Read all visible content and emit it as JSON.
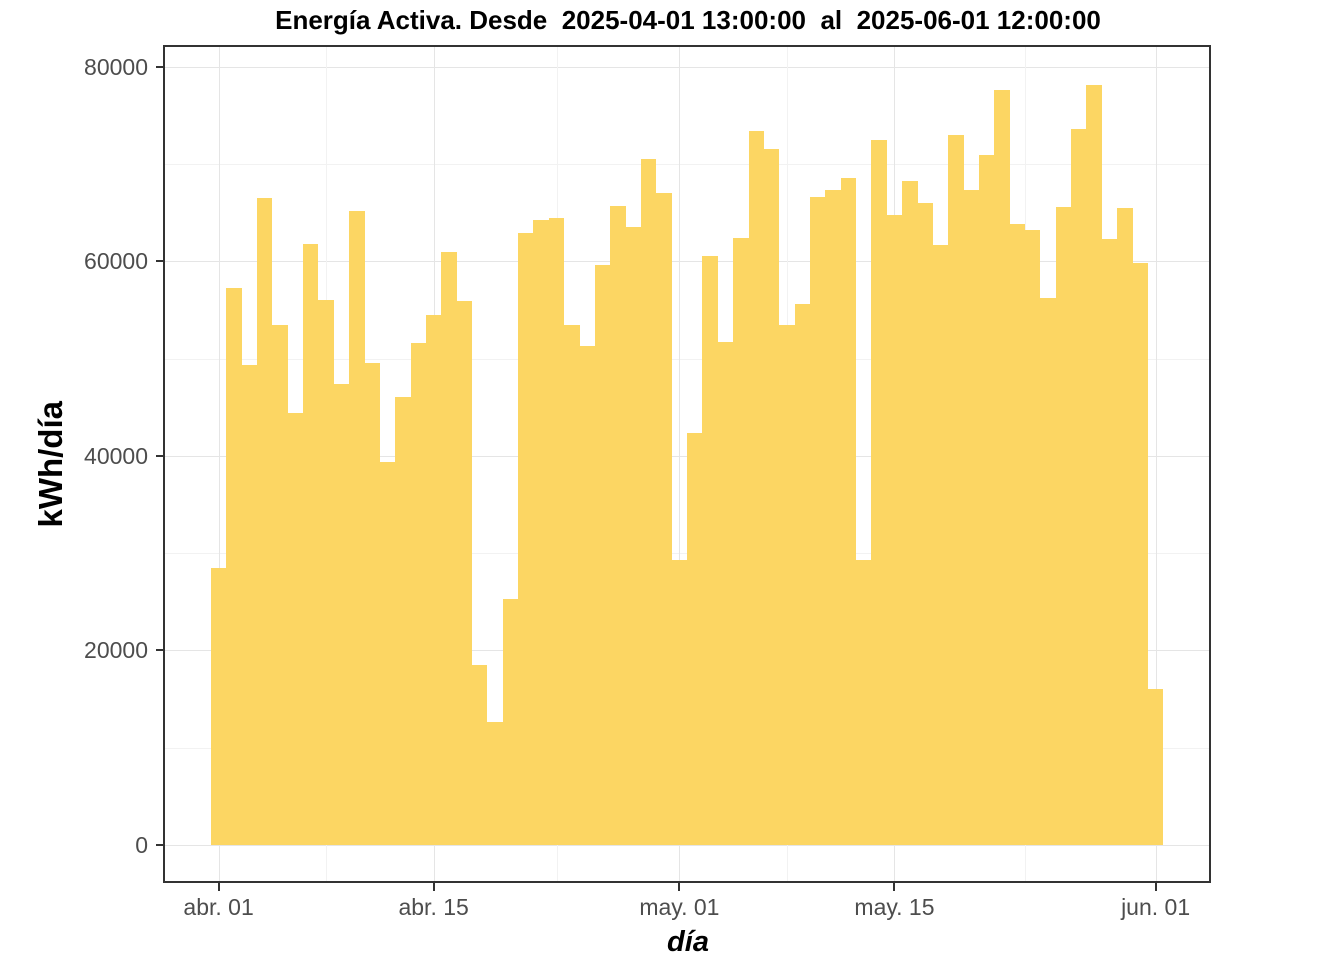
{
  "chart_data": {
    "type": "bar",
    "title": "Energía Activa. Desde  2025-04-01 13:00:00  al  2025-06-01 12:00:00",
    "xlabel": "día",
    "ylabel": "kWh/día",
    "ylim": [
      0,
      80000
    ],
    "grid": "on",
    "legend": "none",
    "bar_color": "#fcd663",
    "background_color": "#ffffff",
    "gridline_major_color": "#e5e5e5",
    "gridline_minor_color": "#f2f2f2",
    "axis_text_color": "#4d4d4d",
    "panel_border_color": "#333333",
    "yticks": [
      0,
      20000,
      40000,
      60000,
      80000
    ],
    "ytick_labels": [
      "0",
      "20000",
      "40000",
      "60000",
      "80000"
    ],
    "xticks": [
      {
        "date": "2025-04-01",
        "label": "abr. 01"
      },
      {
        "date": "2025-04-15",
        "label": "abr. 15"
      },
      {
        "date": "2025-05-01",
        "label": "may. 01"
      },
      {
        "date": "2025-05-15",
        "label": "may. 15"
      },
      {
        "date": "2025-06-01",
        "label": "jun. 01"
      }
    ],
    "x": [
      "2025-04-01",
      "2025-04-02",
      "2025-04-03",
      "2025-04-04",
      "2025-04-05",
      "2025-04-06",
      "2025-04-07",
      "2025-04-08",
      "2025-04-09",
      "2025-04-10",
      "2025-04-11",
      "2025-04-12",
      "2025-04-13",
      "2025-04-14",
      "2025-04-15",
      "2025-04-16",
      "2025-04-17",
      "2025-04-18",
      "2025-04-19",
      "2025-04-20",
      "2025-04-21",
      "2025-04-22",
      "2025-04-23",
      "2025-04-24",
      "2025-04-25",
      "2025-04-26",
      "2025-04-27",
      "2025-04-28",
      "2025-04-29",
      "2025-04-30",
      "2025-05-01",
      "2025-05-02",
      "2025-05-03",
      "2025-05-04",
      "2025-05-05",
      "2025-05-06",
      "2025-05-07",
      "2025-05-08",
      "2025-05-09",
      "2025-05-10",
      "2025-05-11",
      "2025-05-12",
      "2025-05-13",
      "2025-05-14",
      "2025-05-15",
      "2025-05-16",
      "2025-05-17",
      "2025-05-18",
      "2025-05-19",
      "2025-05-20",
      "2025-05-21",
      "2025-05-22",
      "2025-05-23",
      "2025-05-24",
      "2025-05-25",
      "2025-05-26",
      "2025-05-27",
      "2025-05-28",
      "2025-05-29",
      "2025-05-30",
      "2025-05-31",
      "2025-06-01"
    ],
    "values": [
      28500,
      57300,
      49300,
      66500,
      53500,
      44400,
      61800,
      56000,
      47400,
      65200,
      49500,
      39400,
      46000,
      51600,
      54500,
      61000,
      55900,
      18500,
      12600,
      25300,
      62900,
      64200,
      64400,
      53500,
      51300,
      59600,
      65700,
      63500,
      70500,
      67000,
      29300,
      42400,
      60500,
      51700,
      62400,
      73400,
      71500,
      53500,
      55600,
      66600,
      67300,
      68600,
      29300,
      72500,
      64800,
      68300,
      66000,
      61700,
      73000,
      67300,
      70900,
      77600,
      63800,
      63200,
      56200,
      65600,
      73600,
      78100,
      62300,
      65500,
      59800,
      16000
    ]
  }
}
